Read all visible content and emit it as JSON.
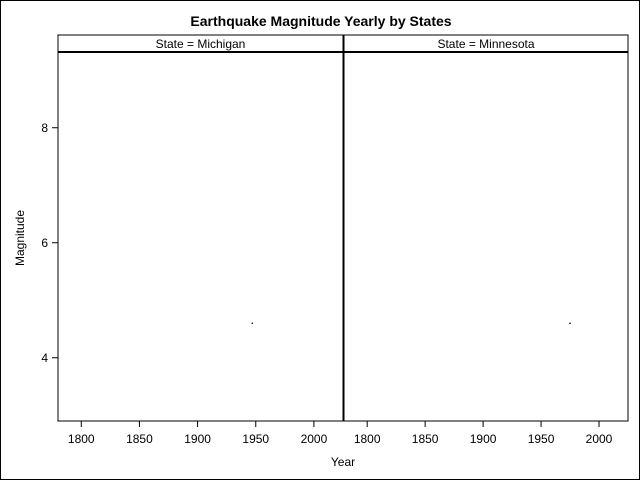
{
  "chart_data": {
    "type": "scatter",
    "title": "Earthquake Magnitude Yearly by States",
    "xlabel": "Year",
    "ylabel": "Magnitude",
    "xlim": [
      1780,
      2025
    ],
    "ylim": [
      2.9,
      9.3
    ],
    "xticks": [
      1800,
      1850,
      1900,
      1950,
      2000
    ],
    "yticks": [
      4,
      6,
      8
    ],
    "grid": false,
    "legend": "none",
    "panels": [
      {
        "label": "State = Michigan",
        "points": [
          {
            "x": 1947,
            "y": 4.6
          }
        ]
      },
      {
        "label": "State = Minnesota",
        "points": [
          {
            "x": 1975,
            "y": 4.6
          }
        ]
      }
    ]
  },
  "colors": {
    "axis": "#000000",
    "marker": "#000000",
    "background": "#ffffff"
  }
}
